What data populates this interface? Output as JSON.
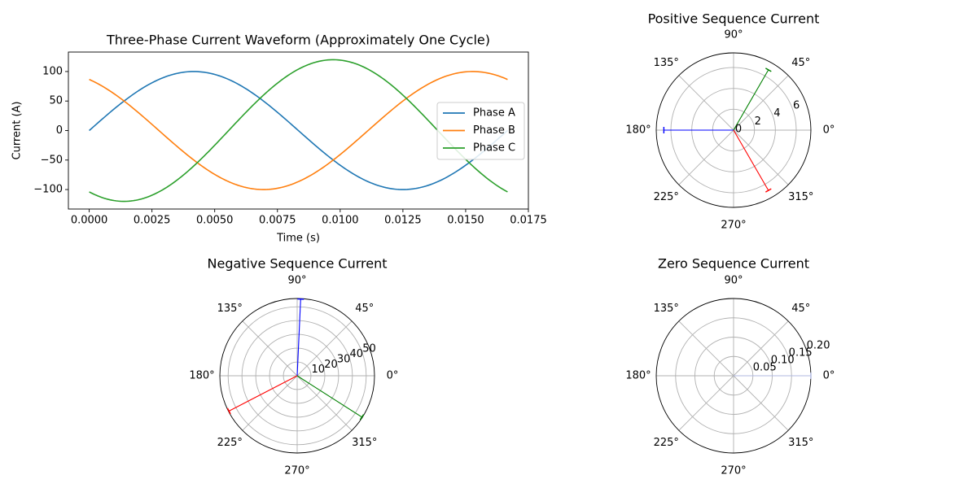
{
  "chart_data": [
    {
      "id": "waveform",
      "type": "line",
      "title": "Three-Phase Current Waveform (Approximately One Cycle)",
      "xlabel": "Time (s)",
      "ylabel": "Current (A)",
      "xlim": [
        -0.00083,
        0.0175
      ],
      "ylim": [
        -133,
        133
      ],
      "xticks": [
        0.0,
        0.0025,
        0.005,
        0.0075,
        0.01,
        0.0125,
        0.015,
        0.0175
      ],
      "xtick_labels": [
        "0.0000",
        "0.0025",
        "0.0050",
        "0.0075",
        "0.0100",
        "0.0125",
        "0.0150",
        "0.0175"
      ],
      "yticks": [
        -100,
        -50,
        0,
        50,
        100
      ],
      "ytick_labels": [
        "−100",
        "−50",
        "0",
        "50",
        "100"
      ],
      "legend": "center-right",
      "series": [
        {
          "name": "Phase A",
          "color": "#1f77b4",
          "amplitude": 100,
          "phase_deg": 0,
          "frequency_hz": 60,
          "t_end": 0.01667
        },
        {
          "name": "Phase B",
          "color": "#ff7f0e",
          "amplitude": 100,
          "phase_deg": 120,
          "frequency_hz": 60,
          "t_end": 0.01667
        },
        {
          "name": "Phase C",
          "color": "#2ca02c",
          "amplitude": 120,
          "phase_deg": -120,
          "frequency_hz": 60,
          "t_end": 0.01667
        }
      ]
    },
    {
      "id": "positive",
      "type": "polar",
      "title": "Positive Sequence Current",
      "rmax": 7.4,
      "rticks": [
        0,
        2,
        4,
        6
      ],
      "rtick_labels": [
        "0",
        "2",
        "4",
        "6"
      ],
      "theta_labels": [
        "0°",
        "45°",
        "90°",
        "135°",
        "180°",
        "225°",
        "270°",
        "315°"
      ],
      "vectors": [
        {
          "angle_deg": 60,
          "magnitude": 6.67,
          "color": "#008000"
        },
        {
          "angle_deg": 180,
          "magnitude": 6.67,
          "color": "#0000ff"
        },
        {
          "angle_deg": -60,
          "magnitude": 6.67,
          "color": "#ff0000"
        }
      ]
    },
    {
      "id": "negative",
      "type": "polar",
      "title": "Negative Sequence Current",
      "rmax": 56,
      "rticks": [
        10,
        20,
        30,
        40,
        50
      ],
      "rtick_labels": [
        "10",
        "20",
        "30",
        "40",
        "50"
      ],
      "theta_labels": [
        "0°",
        "45°",
        "90°",
        "135°",
        "180°",
        "225°",
        "270°",
        "315°"
      ],
      "vectors": [
        {
          "angle_deg": 87.4,
          "magnitude": 55.6,
          "color": "#0000ff"
        },
        {
          "angle_deg": -32.6,
          "magnitude": 55.6,
          "color": "#008000"
        },
        {
          "angle_deg": 207.4,
          "magnitude": 55.6,
          "color": "#ff0000"
        }
      ]
    },
    {
      "id": "zero",
      "type": "polar",
      "title": "Zero Sequence Current",
      "rmax": 0.2,
      "rticks": [
        0.05,
        0.1,
        0.15,
        0.2
      ],
      "rtick_labels": [
        "0.05",
        "0.10",
        "0.15",
        "0.20"
      ],
      "theta_labels": [
        "0°",
        "45°",
        "90°",
        "135°",
        "180°",
        "225°",
        "270°",
        "315°"
      ],
      "vectors": [
        {
          "angle_deg": 0,
          "magnitude": 0.2,
          "color": "#b0b8e0"
        }
      ]
    }
  ]
}
